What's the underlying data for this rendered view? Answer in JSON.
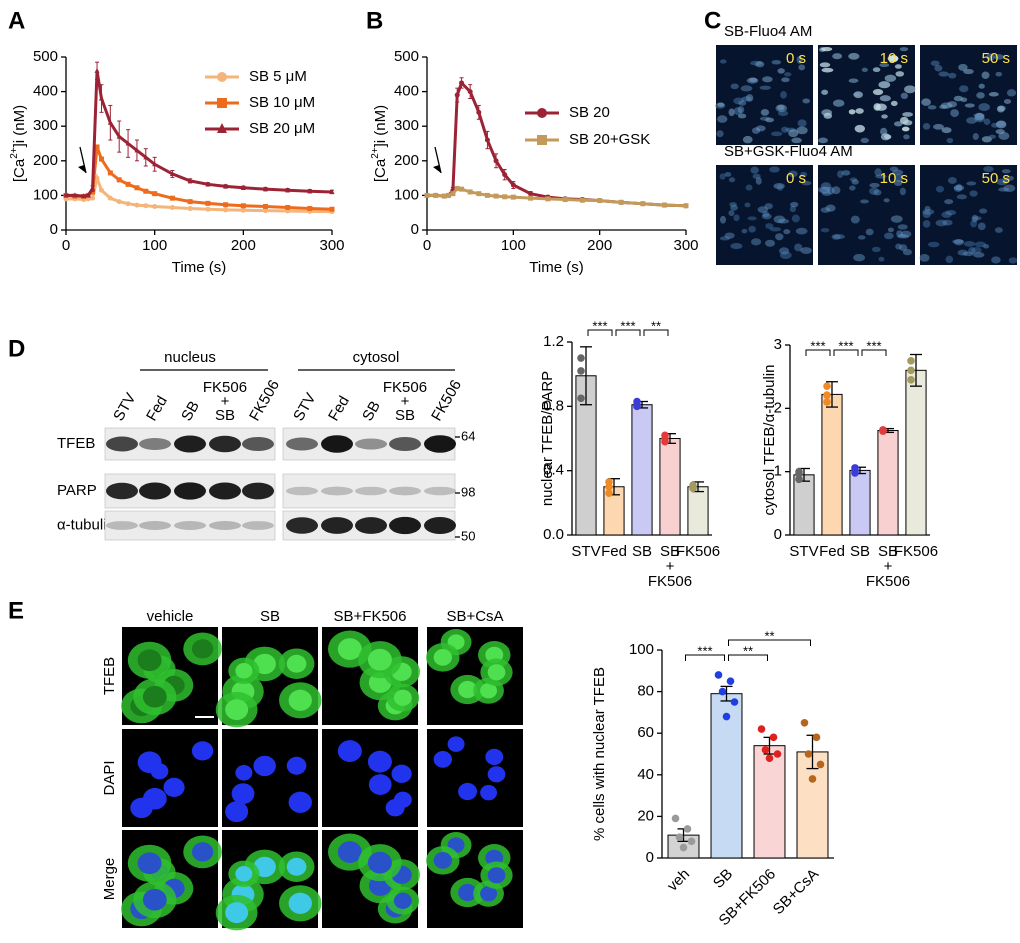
{
  "panel_labels": [
    "A",
    "B",
    "C",
    "D",
    "E"
  ],
  "chart_data": [
    {
      "type": "line",
      "xlabel": "Time (s)",
      "ylabel": [
        "[Ca",
        "2+",
        "]i (nM)"
      ],
      "x": [
        0,
        10,
        20,
        25,
        30,
        35,
        40,
        50,
        60,
        70,
        80,
        90,
        100,
        120,
        140,
        160,
        180,
        200,
        225,
        250,
        275,
        300
      ],
      "series": [
        {
          "name": "SB 5 μM",
          "color": "#f5b47a",
          "marker": "circle",
          "values": [
            90,
            90,
            88,
            90,
            92,
            150,
            115,
            92,
            82,
            76,
            72,
            70,
            68,
            65,
            62,
            60,
            58,
            57,
            56,
            55,
            54,
            53
          ]
        },
        {
          "name": "SB 10 μM",
          "color": "#ee6a1c",
          "marker": "square",
          "values": [
            100,
            98,
            97,
            100,
            110,
            240,
            205,
            165,
            145,
            132,
            122,
            112,
            105,
            92,
            82,
            77,
            73,
            70,
            68,
            65,
            62,
            60
          ]
        },
        {
          "name": "SB 20 μM",
          "color": "#9b2335",
          "marker": "triangle",
          "values": [
            100,
            100,
            98,
            100,
            120,
            460,
            380,
            310,
            270,
            250,
            230,
            210,
            190,
            162,
            142,
            132,
            126,
            122,
            118,
            115,
            112,
            110
          ],
          "errors": [
            3,
            3,
            3,
            3,
            8,
            25,
            40,
            50,
            45,
            40,
            30,
            25,
            20,
            10,
            6,
            5,
            5,
            5,
            5,
            5,
            5,
            5
          ]
        }
      ],
      "xlim": [
        0,
        300
      ],
      "xticks": [
        0,
        100,
        200,
        300
      ],
      "ylim": [
        0,
        500
      ],
      "yticks": [
        0,
        100,
        200,
        300,
        400,
        500
      ],
      "legend": "upper right"
    },
    {
      "type": "line",
      "xlabel": "Time (s)",
      "ylabel": [
        "[Ca",
        "2+",
        "]i (nM)"
      ],
      "x": [
        0,
        10,
        20,
        25,
        30,
        35,
        40,
        50,
        60,
        70,
        80,
        90,
        100,
        120,
        140,
        160,
        180,
        200,
        225,
        250,
        275,
        300
      ],
      "series": [
        {
          "name": "SB 20",
          "color": "#9b2335",
          "marker": "circle",
          "values": [
            100,
            100,
            98,
            100,
            115,
            390,
            425,
            400,
            340,
            260,
            200,
            160,
            130,
            105,
            95,
            90,
            88,
            85,
            80,
            76,
            72,
            70
          ],
          "errors": [
            3,
            3,
            3,
            3,
            8,
            20,
            15,
            20,
            20,
            25,
            20,
            15,
            10,
            6,
            5,
            5,
            5,
            5,
            5,
            5,
            5,
            5
          ]
        },
        {
          "name": "SB 20+GSK",
          "color": "#c49a5a",
          "marker": "square",
          "values": [
            100,
            100,
            98,
            100,
            105,
            120,
            118,
            110,
            105,
            100,
            98,
            96,
            95,
            92,
            90,
            88,
            86,
            85,
            80,
            76,
            72,
            70
          ]
        }
      ],
      "xlim": [
        0,
        300
      ],
      "xticks": [
        0,
        100,
        200,
        300
      ],
      "ylim": [
        0,
        500
      ],
      "yticks": [
        0,
        100,
        200,
        300,
        400,
        500
      ],
      "legend": "right"
    },
    {
      "type": "bar",
      "ylabel": "nuclear TFEB/PARP",
      "categories": [
        "STV",
        "Fed",
        "SB",
        [
          "SB",
          "+",
          "FK506"
        ],
        "FK506"
      ],
      "values": [
        0.99,
        0.3,
        0.81,
        0.6,
        0.3
      ],
      "errors": [
        0.18,
        0.05,
        0.02,
        0.03,
        0.03
      ],
      "points": [
        [
          1.1,
          1.02,
          0.85
        ],
        [
          0.33,
          0.26,
          0.3
        ],
        [
          0.83,
          0.8,
          0.81
        ],
        [
          0.62,
          0.58,
          0.6
        ],
        [
          0.31,
          0.29,
          0.3
        ]
      ],
      "colors": [
        "#cfcfcf",
        "#fdd7b0",
        "#c9c9f3",
        "#f9d0d0",
        "#e9e9dc"
      ],
      "point_colors": [
        "#666666",
        "#f08a24",
        "#3c3cd6",
        "#e03c3c",
        "#a39a62"
      ],
      "ylim": [
        0,
        1.2
      ],
      "yticks": [
        {
          "value": 0,
          "label": "0.0"
        },
        0.4,
        0.8,
        1.2
      ],
      "significance": [
        {
          "between": [
            0,
            1
          ],
          "label": "***"
        },
        {
          "between": [
            1,
            2
          ],
          "label": "***"
        },
        {
          "between": [
            2,
            3
          ],
          "label": "**"
        }
      ]
    },
    {
      "type": "bar",
      "ylabel": "cytosol TFEB/α-tubulin",
      "categories": [
        "STV",
        "Fed",
        "SB",
        [
          "SB",
          "+",
          "FK506"
        ],
        "FK506"
      ],
      "values": [
        0.95,
        2.22,
        1.02,
        1.65,
        2.6
      ],
      "errors": [
        0.1,
        0.2,
        0.05,
        0.03,
        0.25
      ],
      "points": [
        [
          1.0,
          0.88,
          0.97
        ],
        [
          2.35,
          2.1,
          2.21
        ],
        [
          1.06,
          0.98,
          1.02
        ],
        [
          1.66,
          1.64,
          1.65
        ],
        [
          2.75,
          2.45,
          2.6
        ]
      ],
      "colors": [
        "#cfcfcf",
        "#fdd7b0",
        "#c9c9f3",
        "#f9d0d0",
        "#e9e9dc"
      ],
      "point_colors": [
        "#666666",
        "#f08a24",
        "#3c3cd6",
        "#e03c3c",
        "#a39a62"
      ],
      "ylim": [
        0,
        3
      ],
      "yticks": [
        0,
        1,
        2,
        3
      ],
      "significance": [
        {
          "between": [
            0,
            1
          ],
          "label": "***"
        },
        {
          "between": [
            1,
            2
          ],
          "label": "***"
        },
        {
          "between": [
            2,
            3
          ],
          "label": "***"
        }
      ]
    },
    {
      "type": "bar",
      "ylabel": "% cells with nuclear TFEB",
      "categories": [
        "veh",
        "SB",
        "SB+FK506",
        "SB+CsA"
      ],
      "values": [
        11,
        79,
        54,
        51
      ],
      "errors": [
        3,
        3.5,
        4,
        8
      ],
      "points": [
        [
          19,
          14,
          10,
          8,
          5
        ],
        [
          88,
          85,
          80,
          75,
          68
        ],
        [
          62,
          58,
          52,
          50,
          48
        ],
        [
          65,
          58,
          50,
          45,
          38
        ]
      ],
      "colors": [
        "#d3d3d3",
        "#c6daf3",
        "#fad5d5",
        "#fde0c4"
      ],
      "point_colors": [
        "#9a9a9a",
        "#1f3fe0",
        "#e01f1f",
        "#b5651d"
      ],
      "ylim": [
        0,
        100
      ],
      "yticks": [
        0,
        20,
        40,
        60,
        80,
        100
      ],
      "significance": [
        {
          "between": [
            0,
            1
          ],
          "label": "***"
        },
        {
          "between": [
            1,
            2
          ],
          "label": "**"
        },
        {
          "between": [
            1,
            3
          ],
          "label": "**"
        }
      ]
    }
  ],
  "fluo_images": {
    "rows": [
      "SB-Fluo4 AM",
      "SB+GSK-Fluo4 AM"
    ],
    "times": [
      "0 s",
      "10 s",
      "50 s"
    ]
  },
  "blot": {
    "regions": [
      "nucleus",
      "cytosol"
    ],
    "lanes": [
      [
        "STV",
        "Fed",
        "SB",
        [
          "FK506",
          "+",
          "SB"
        ],
        "FK506"
      ],
      [
        "STV",
        "Fed",
        "SB",
        [
          "FK506",
          "+",
          "SB"
        ],
        "FK506"
      ]
    ],
    "rows": [
      "TFEB",
      "PARP",
      "α-tubulin"
    ],
    "markers": [
      64,
      98,
      50
    ]
  },
  "confocal": {
    "columns": [
      "vehicle",
      "SB",
      "SB+FK506",
      "SB+CsA"
    ],
    "rows": [
      "TFEB",
      "DAPI",
      "Merge"
    ]
  }
}
